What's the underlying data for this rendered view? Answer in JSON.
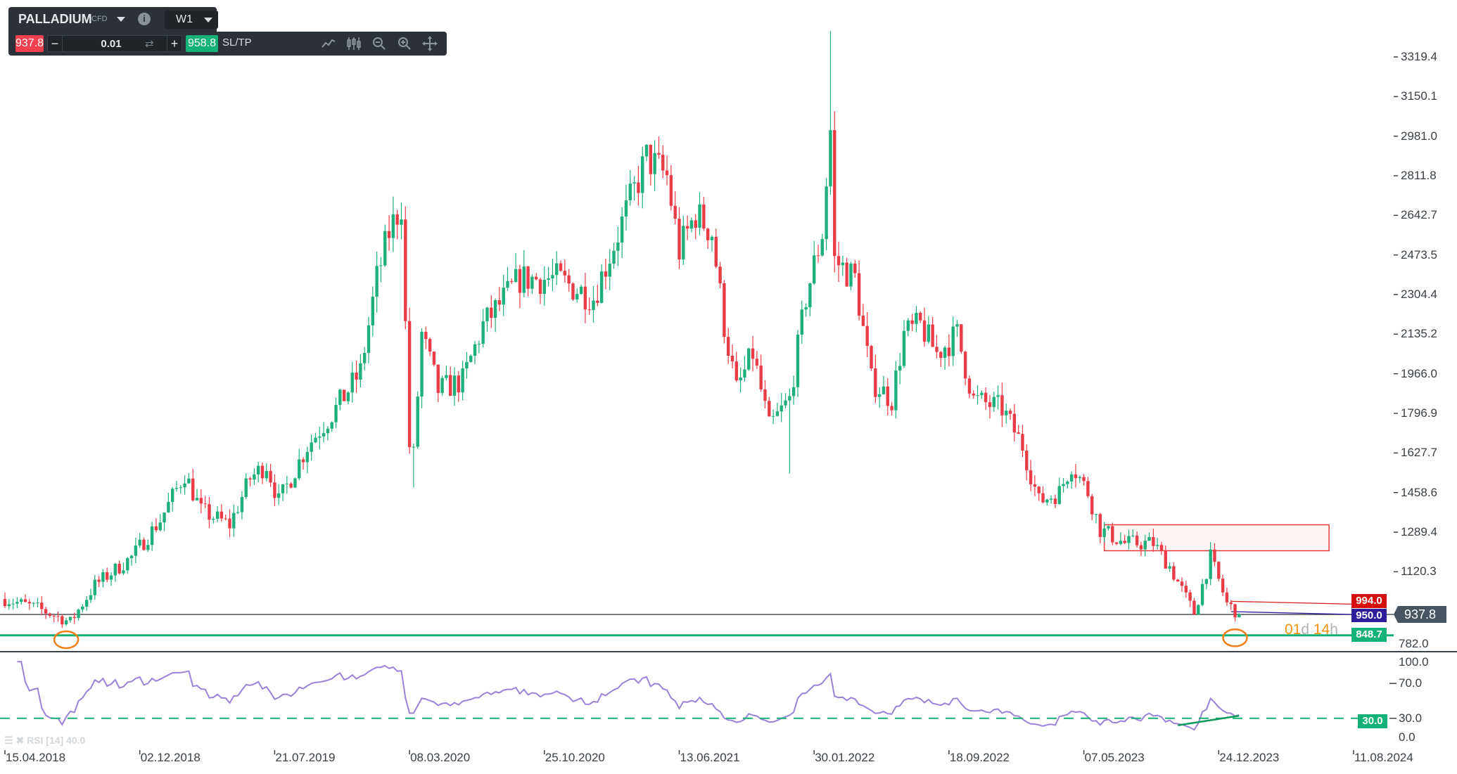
{
  "toolbar": {
    "symbol": "PALLADIUM",
    "symbol_type": "CFD",
    "timeframe": "W1",
    "sell_price": "937.8",
    "buy_price": "958.8",
    "quantity": "0.01",
    "minus": "−",
    "plus": "+",
    "sltp_label": "SL/TP",
    "info": "i"
  },
  "colors": {
    "up": "#1eb07a",
    "down": "#ea3c46",
    "rsi": "#9b82d8",
    "support": "#16b074",
    "zone": "#e23a3a",
    "marker": "#f07f18"
  },
  "price_axis": [
    "3319.4",
    "3150.1",
    "2981.0",
    "2811.8",
    "2642.7",
    "2473.5",
    "2304.4",
    "2135.2",
    "1966.0",
    "1796.9",
    "1627.7",
    "1458.6",
    "1289.4",
    "1120.3",
    "782.0"
  ],
  "rsi_axis": [
    "100.0",
    "70.0",
    "30.0",
    "0.0"
  ],
  "date_axis": [
    "15.04.2018",
    "02.12.2018",
    "21.07.2019",
    "08.03.2020",
    "25.10.2020",
    "13.06.2021",
    "30.01.2022",
    "18.09.2022",
    "07.05.2023",
    "24.12.2023",
    "11.08.2024"
  ],
  "tags": {
    "current": "937.8",
    "red_level": "994.0",
    "blue_level": "950.0",
    "support": "848.7",
    "rsi_level": "30.0"
  },
  "countdown": {
    "days": "01",
    "d": "d ",
    "hours": "14",
    "h": "h"
  },
  "legend": "RSI [14] 40.0",
  "chart_data": {
    "type": "candlestick",
    "interval": "weekly",
    "price_range": [
      782.0,
      3400
    ],
    "rsi_range": [
      0,
      100
    ],
    "last_close": 937.8,
    "close_path": [
      [
        "2018-04-15",
        1004
      ],
      [
        "2018-06-10",
        964
      ],
      [
        "2018-08-05",
        905
      ],
      [
        "2018-09-16",
        1063
      ],
      [
        "2018-11-18",
        1182
      ],
      [
        "2019-01-06",
        1341
      ],
      [
        "2019-02-17",
        1539
      ],
      [
        "2019-03-17",
        1380
      ],
      [
        "2019-05-05",
        1321
      ],
      [
        "2019-06-09",
        1519
      ],
      [
        "2019-07-07",
        1579
      ],
      [
        "2019-07-28",
        1420
      ],
      [
        "2019-09-15",
        1658
      ],
      [
        "2019-11-03",
        1817
      ],
      [
        "2019-12-15",
        1975
      ],
      [
        "2020-01-12",
        2372
      ],
      [
        "2020-02-02",
        2570
      ],
      [
        "2020-02-23",
        2689
      ],
      [
        "2020-03-08",
        1658
      ],
      [
        "2020-03-15",
        1618
      ],
      [
        "2020-03-29",
        2134
      ],
      [
        "2020-04-26",
        1896
      ],
      [
        "2020-06-07",
        1936
      ],
      [
        "2020-07-12",
        2173
      ],
      [
        "2020-09-13",
        2372
      ],
      [
        "2020-11-15",
        2372
      ],
      [
        "2021-01-17",
        2292
      ],
      [
        "2021-03-07",
        2610
      ],
      [
        "2021-04-18",
        2887
      ],
      [
        "2021-05-23",
        2808
      ],
      [
        "2021-06-13",
        2491
      ],
      [
        "2021-07-11",
        2650
      ],
      [
        "2021-08-08",
        2570
      ],
      [
        "2021-08-29",
        2173
      ],
      [
        "2021-09-19",
        1896
      ],
      [
        "2021-10-17",
        2054
      ],
      [
        "2021-11-14",
        1737
      ],
      [
        "2021-12-19",
        1856
      ],
      [
        "2022-01-16",
        2292
      ],
      [
        "2022-02-13",
        2570
      ],
      [
        "2022-02-27",
        3006
      ],
      [
        "2022-03-06",
        2451
      ],
      [
        "2022-04-10",
        2372
      ],
      [
        "2022-05-08",
        1936
      ],
      [
        "2022-06-12",
        1856
      ],
      [
        "2022-07-03",
        2134
      ],
      [
        "2022-07-31",
        2173
      ],
      [
        "2022-08-28",
        2054
      ],
      [
        "2022-10-02",
        2134
      ],
      [
        "2022-10-30",
        1856
      ],
      [
        "2022-12-18",
        1817
      ],
      [
        "2023-01-22",
        1658
      ],
      [
        "2023-02-19",
        1420
      ],
      [
        "2023-03-26",
        1460
      ],
      [
        "2023-04-16",
        1579
      ],
      [
        "2023-05-14",
        1460
      ],
      [
        "2023-06-04",
        1301
      ],
      [
        "2023-07-16",
        1242
      ],
      [
        "2023-09-03",
        1242
      ],
      [
        "2023-10-01",
        1143
      ],
      [
        "2023-11-12",
        944
      ],
      [
        "2023-12-10",
        1182
      ],
      [
        "2024-01-07",
        984
      ],
      [
        "2024-01-28",
        937.8
      ]
    ],
    "extremes": [
      {
        "date": "2022-02-27",
        "high": 3430
      },
      {
        "date": "2020-03-15",
        "low": 1480
      },
      {
        "date": "2021-12-19",
        "low": 1540
      }
    ],
    "horizontal_levels": [
      {
        "price": 848.7,
        "style": "solid",
        "color": "#16b074"
      },
      {
        "price": 937.8,
        "style": "thin",
        "color": "#3a4248"
      },
      {
        "price": 994.0,
        "color": "#d42020",
        "from": "2024-01-14"
      },
      {
        "price": 950.0,
        "color": "#2d1d9a",
        "from": "2024-01-14"
      }
    ],
    "zone": {
      "from": "2023-06-11",
      "to": "2024-06-30",
      "top": 1321,
      "bottom": 1210
    },
    "markers": [
      {
        "date": "2018-07-29",
        "price": 830
      },
      {
        "date": "2024-01-21",
        "price": 838
      }
    ],
    "rsi": {
      "period": 14,
      "level": 30,
      "trendline": [
        [
          "2023-10-15",
          22
        ],
        [
          "2024-01-28",
          33
        ]
      ]
    }
  }
}
